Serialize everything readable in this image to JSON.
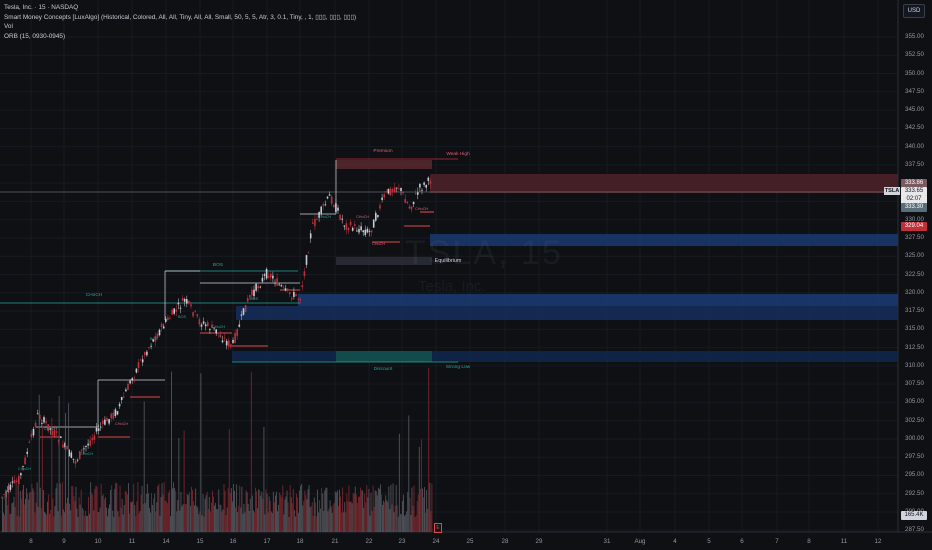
{
  "legend": {
    "title": "Tesla, Inc. · 15 · NASDAQ",
    "indicator": "Smart Money Concepts [LuxAlgo] (Historical, Colored, All, All, Tiny, All, All, Small, 50, 5, 5, Atr, 3, 0.1, Tiny, , 1, ▯▯▯, ▯▯▯, ▯▯▯)",
    "volume": "Vol",
    "orb": "ORB (15, 0930-0945)"
  },
  "currency_button": "USD",
  "symbol_tag": "TSLA",
  "price_scale": {
    "labels": [
      "355.00",
      "352.50",
      "350.00",
      "347.50",
      "345.00",
      "342.50",
      "340.00",
      "337.50",
      "335.00",
      "332.50",
      "330.00",
      "327.50",
      "325.00",
      "322.50",
      "320.00",
      "317.50",
      "315.00",
      "312.50",
      "310.00",
      "307.50",
      "305.00",
      "302.50",
      "300.00",
      "297.50",
      "295.00",
      "292.50",
      "290.00",
      "287.50"
    ],
    "tags": [
      {
        "text": "333.86",
        "bg": "#7a5a5f",
        "fg": "#ffffff"
      },
      {
        "text": "333.65",
        "bg": "#e8e8ea",
        "fg": "#131722"
      },
      {
        "text": "02:07",
        "bg": "#e8e8ea",
        "fg": "#131722"
      },
      {
        "text": "333.30",
        "bg": "#5a6e78",
        "fg": "#ffffff"
      },
      {
        "text": "329.04",
        "bg": "#c0303a",
        "fg": "#ffffff"
      },
      {
        "text": "165.4K",
        "bg": "#d1d4dc",
        "fg": "#131722"
      }
    ]
  },
  "time_axis": [
    "8",
    "9",
    "10",
    "11",
    "14",
    "15",
    "16",
    "17",
    "18",
    "21",
    "22",
    "23",
    "24",
    "25",
    "28",
    "29",
    "31",
    "Aug",
    "4",
    "5",
    "6",
    "7",
    "8",
    "11",
    "12"
  ],
  "annotations": {
    "premium": "Premium",
    "equilibrium": "Equilibrium",
    "discount": "Discount",
    "weak_high": "Weak High",
    "strong_low": "Strong Low",
    "bos": "BOS",
    "choch": "CHoCH"
  },
  "watermark": {
    "symbol": "TSLA, 15",
    "name": "Tesla, Inc."
  },
  "colors": {
    "bull": "#c9ccd4",
    "bear": "#c0303a",
    "zone_red": "#5c2a30",
    "zone_blue": "#1a3a6e",
    "zone_teal": "#14504a",
    "line_teal": "#26a69a"
  },
  "chart_data": {
    "type": "candlestick",
    "symbol": "TSLA",
    "interval": "15",
    "ylim": [
      287.5,
      357.0
    ],
    "last_price": 333.65
  }
}
